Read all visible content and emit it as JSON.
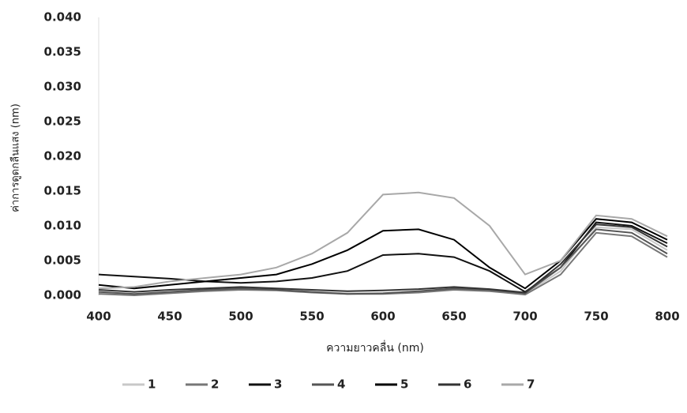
{
  "chart_data": {
    "type": "line",
    "y_label": "ค่าการดูดกลืนแสง (nm)",
    "x_label": "ความยาวคลื่น (nm)",
    "x": [
      400,
      425,
      450,
      475,
      500,
      525,
      550,
      575,
      600,
      625,
      650,
      675,
      700,
      725,
      750,
      775,
      800
    ],
    "xlim": [
      400,
      800
    ],
    "xticks": [
      400,
      450,
      500,
      550,
      600,
      650,
      700,
      750,
      800
    ],
    "ylim": [
      0,
      0.04
    ],
    "yticks": [
      {
        "value": 0,
        "label": "0.000"
      },
      {
        "value": 0.005,
        "label": "0.005"
      },
      {
        "value": 0.01,
        "label": "0.010"
      },
      {
        "value": 0.015,
        "label": "0.015"
      },
      {
        "value": 0.02,
        "label": "0.020"
      },
      {
        "value": 0.025,
        "label": "0.025"
      },
      {
        "value": 0.03,
        "label": "0.030"
      },
      {
        "value": 0.035,
        "label": "0.035"
      },
      {
        "value": 0.04,
        "label": "0.040"
      }
    ],
    "grid": false,
    "legend": "bottom",
    "series": [
      {
        "name": "1",
        "color": "#c8c8c8",
        "values": [
          0.0003,
          0.0001,
          0.0004,
          0.0007,
          0.0009,
          0.0008,
          0.0005,
          0.0003,
          0.0003,
          0.0005,
          0.0009,
          0.0007,
          0.0002,
          0.0035,
          0.0098,
          0.0095,
          0.0065
        ]
      },
      {
        "name": "2",
        "color": "#777777",
        "values": [
          0.0002,
          0,
          0.0003,
          0.0006,
          0.0008,
          0.0007,
          0.0004,
          0.0002,
          0.0002,
          0.0004,
          0.0008,
          0.0006,
          0.0001,
          0.003,
          0.009,
          0.0085,
          0.0055
        ]
      },
      {
        "name": "3",
        "color": "#111111",
        "values": [
          0.003,
          0.0027,
          0.0024,
          0.002,
          0.0018,
          0.002,
          0.0025,
          0.0035,
          0.0058,
          0.006,
          0.0055,
          0.0035,
          0.0005,
          0.004,
          0.0105,
          0.01,
          0.0075
        ]
      },
      {
        "name": "4",
        "color": "#555555",
        "values": [
          0.0005,
          0.0002,
          0.0005,
          0.0008,
          0.001,
          0.0008,
          0.0005,
          0.0002,
          0.0003,
          0.0006,
          0.001,
          0.0008,
          0.0003,
          0.004,
          0.0095,
          0.009,
          0.006
        ]
      },
      {
        "name": "5",
        "color": "#000000",
        "values": [
          0.0015,
          0.001,
          0.0015,
          0.002,
          0.0025,
          0.003,
          0.0045,
          0.0065,
          0.0093,
          0.0095,
          0.008,
          0.004,
          0.001,
          0.005,
          0.011,
          0.0105,
          0.008
        ]
      },
      {
        "name": "6",
        "color": "#333333",
        "values": [
          0.0008,
          0.0005,
          0.0008,
          0.001,
          0.0012,
          0.001,
          0.0008,
          0.0006,
          0.0007,
          0.0009,
          0.0012,
          0.0009,
          0.0004,
          0.0045,
          0.0102,
          0.0098,
          0.007
        ]
      },
      {
        "name": "7",
        "color": "#a8a8a8",
        "values": [
          0.001,
          0.0012,
          0.002,
          0.0025,
          0.003,
          0.004,
          0.006,
          0.009,
          0.0145,
          0.0148,
          0.014,
          0.01,
          0.003,
          0.005,
          0.0115,
          0.011,
          0.0085
        ]
      }
    ]
  }
}
